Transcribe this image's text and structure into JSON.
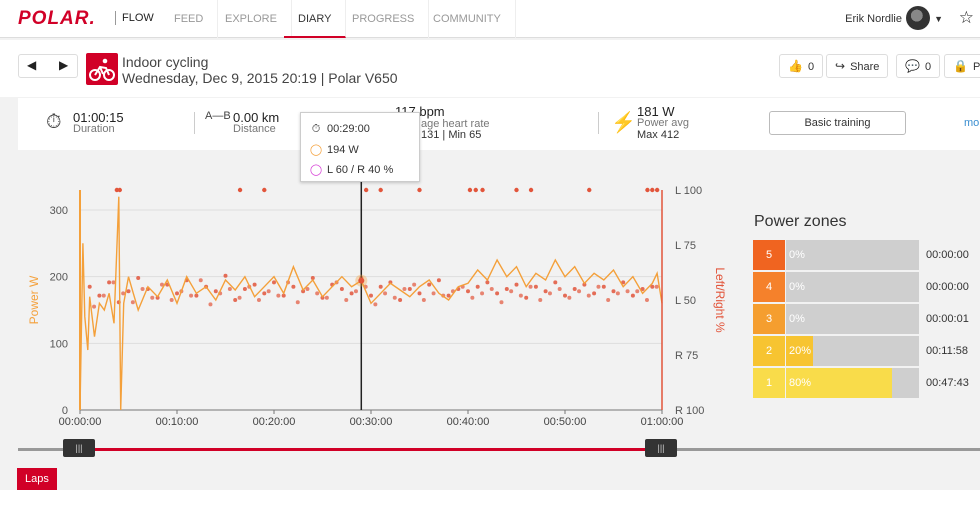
{
  "nav": {
    "logo": "POLAR.",
    "flow": "FLOW",
    "items": [
      "FEED",
      "EXPLORE",
      "DIARY",
      "PROGRESS",
      "COMMUNITY"
    ],
    "active": "DIARY",
    "user": "Erik Nordlie"
  },
  "session": {
    "title": "Indoor cycling",
    "subtitle": "Wednesday, Dec 9, 2015 20:19 | Polar V650",
    "likes": "0",
    "share": "Share",
    "comments": "0",
    "private_label": "Pr"
  },
  "stats": {
    "duration_value": "01:00:15",
    "duration_label": "Duration",
    "distance_value": "0.00 km",
    "distance_label": "Distance",
    "hr_value": "117 bpm",
    "hr_label": "age heart rate",
    "hr_sub": "131  |  Min 65",
    "power_value": "181 W",
    "power_label": "Power avg",
    "power_sub": "Max 412",
    "basic_training": "Basic training",
    "more": "mo"
  },
  "tooltip": {
    "time": "00:29:00",
    "power": "194 W",
    "balance": "L 60 / R 40 %"
  },
  "chart_data": {
    "type": "line",
    "x_unit": "time",
    "xticks": [
      "00:00:00",
      "00:10:00",
      "00:20:00",
      "00:30:00",
      "00:40:00",
      "00:50:00",
      "01:00:00"
    ],
    "xlim_minutes": [
      0,
      60
    ],
    "ylabel_left": "Power W",
    "ylim_left": [
      0,
      330
    ],
    "yticks_left": [
      "0",
      "100",
      "200",
      "300"
    ],
    "ylabel_right": "Left/Right %",
    "yticks_right": [
      "L 100",
      "L 75",
      "L 50",
      "R 75",
      "R 100"
    ],
    "cursor_minute": 29,
    "series": [
      {
        "name": "Power W",
        "color": "#f4a03a",
        "x_minutes": [
          0,
          0.3,
          0.5,
          0.8,
          1,
          1.5,
          2,
          2.5,
          3,
          3.5,
          4,
          4.2,
          4.5,
          5,
          5.5,
          6,
          7,
          8,
          9,
          10,
          11,
          12,
          13,
          14,
          15,
          16,
          17,
          18,
          19,
          20,
          21,
          22,
          23,
          24,
          25,
          26,
          27,
          28,
          29,
          30,
          31,
          32,
          33,
          34,
          35,
          36,
          37,
          38,
          39,
          40,
          41,
          42,
          43,
          44,
          45,
          46,
          47,
          48,
          49,
          50,
          51,
          52,
          53,
          54,
          55,
          56,
          57,
          58,
          59,
          59.5,
          60
        ],
        "values": [
          0,
          250,
          140,
          90,
          170,
          110,
          160,
          150,
          175,
          130,
          320,
          0,
          160,
          200,
          175,
          150,
          185,
          170,
          195,
          160,
          200,
          175,
          185,
          165,
          195,
          180,
          200,
          170,
          185,
          200,
          175,
          215,
          180,
          195,
          170,
          185,
          200,
          185,
          194,
          160,
          175,
          190,
          180,
          170,
          185,
          195,
          175,
          165,
          185,
          190,
          210,
          195,
          225,
          200,
          215,
          185,
          205,
          195,
          225,
          200,
          215,
          190,
          205,
          195,
          210,
          185,
          200,
          175,
          190,
          205,
          160
        ]
      },
      {
        "name": "Left/Right %",
        "color": "#e2553b",
        "x_minutes": [
          1,
          2,
          3,
          4,
          5,
          6,
          7,
          8,
          9,
          10,
          11,
          12,
          13,
          14,
          15,
          16,
          17,
          18,
          19,
          20,
          21,
          22,
          23,
          24,
          25,
          26,
          27,
          28,
          29,
          30,
          31,
          32,
          33,
          34,
          35,
          36,
          37,
          38,
          39,
          40,
          41,
          42,
          43,
          44,
          45,
          46,
          47,
          48,
          49,
          50,
          51,
          52,
          53,
          54,
          55,
          56,
          57,
          58,
          59
        ],
        "values_left_pct": [
          56,
          52,
          58,
          49,
          54,
          60,
          55,
          51,
          57,
          53,
          59,
          52,
          56,
          54,
          61,
          50,
          55,
          57,
          53,
          58,
          52,
          56,
          54,
          60,
          51,
          57,
          55,
          53,
          60,
          52,
          56,
          58,
          50,
          55,
          53,
          57,
          59,
          52,
          55,
          54,
          56,
          58,
          53,
          55,
          57,
          51,
          56,
          54,
          58,
          52,
          55,
          57,
          53,
          56,
          54,
          58,
          52,
          55,
          56
        ]
      }
    ],
    "outliers_top_minutes": [
      3.8,
      4.1,
      16.5,
      19,
      29.5,
      31,
      35,
      40.2,
      40.8,
      41.5,
      45,
      46.5,
      52.5,
      58.5,
      59,
      59.5
    ]
  },
  "power_zones": {
    "title": "Power zones",
    "zones": [
      {
        "num": "5",
        "pct": "0%",
        "fill": 0,
        "time": "00:00:00",
        "color": "#f06420"
      },
      {
        "num": "4",
        "pct": "0%",
        "fill": 0,
        "time": "00:00:00",
        "color": "#f5812b"
      },
      {
        "num": "3",
        "pct": "0%",
        "fill": 0,
        "time": "00:00:01",
        "color": "#f59e2f"
      },
      {
        "num": "2",
        "pct": "20%",
        "fill": 0.2,
        "time": "00:11:58",
        "color": "#f7c431"
      },
      {
        "num": "1",
        "pct": "80%",
        "fill": 0.8,
        "time": "00:47:43",
        "color": "#f9dc4a"
      }
    ]
  },
  "laps": "Laps"
}
